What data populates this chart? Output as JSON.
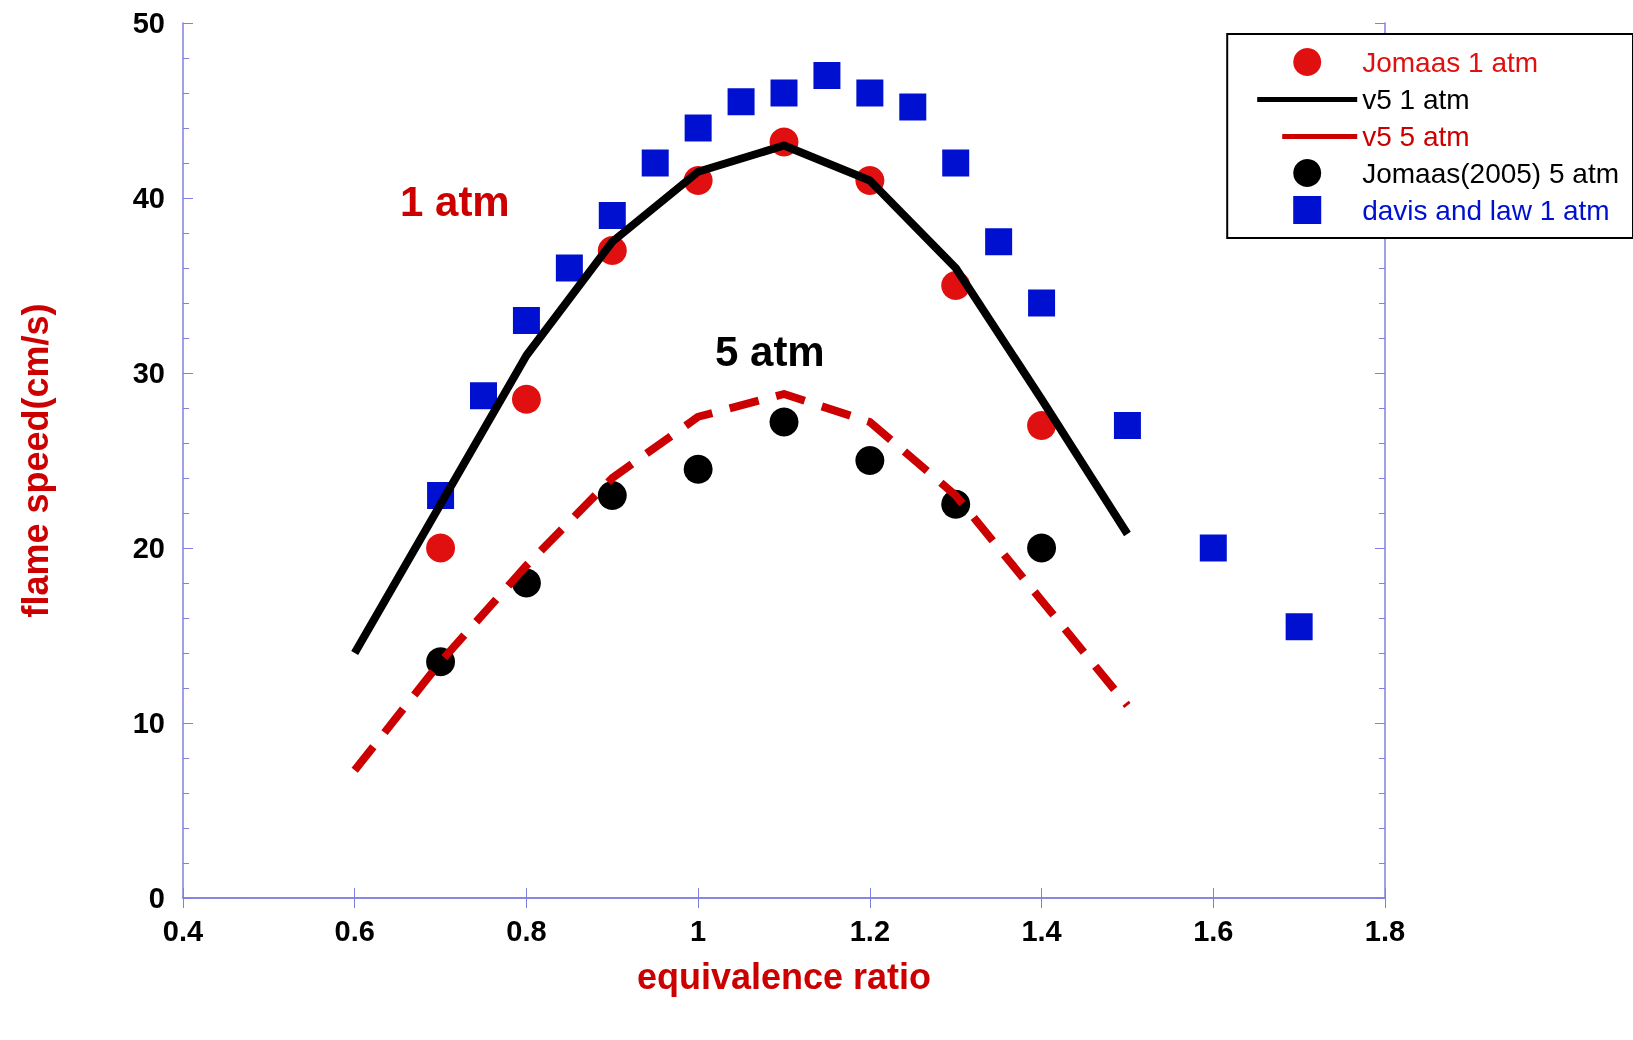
{
  "chart_data": {
    "type": "scatter",
    "xlabel": "equivalence ratio",
    "ylabel": "flame speed(cm/s)",
    "xlim": [
      0.4,
      1.8
    ],
    "xticks": [
      0.4,
      0.6,
      0.8,
      1,
      1.2,
      1.4,
      1.6,
      1.8
    ],
    "ylim": [
      0,
      50
    ],
    "yticks": [
      0,
      10,
      20,
      30,
      40,
      50
    ],
    "grid": false,
    "legend": "top right",
    "annotations": [
      "1 atm",
      "5 atm"
    ],
    "series": [
      {
        "name": "Jomaas 1 atm",
        "type": "scatter",
        "marker": "circle",
        "color": "#e01010",
        "x": [
          0.7,
          0.8,
          0.9,
          1.0,
          1.1,
          1.2,
          1.3,
          1.4
        ],
        "values": [
          20,
          28.5,
          37,
          41,
          43.2,
          41,
          35,
          27
        ]
      },
      {
        "name": "v5 1 atm",
        "type": "line",
        "marker": "none",
        "line_style": "solid",
        "color": "#000000",
        "x": [
          0.6,
          0.7,
          0.8,
          0.9,
          1.0,
          1.1,
          1.2,
          1.3,
          1.4,
          1.5
        ],
        "values": [
          14,
          22.5,
          31,
          37.5,
          41.5,
          43,
          41,
          36,
          28.5,
          20.8
        ]
      },
      {
        "name": "v5 5 atm",
        "type": "line",
        "marker": "none",
        "line_style": "dashed",
        "color": "#cc0000",
        "x": [
          0.6,
          0.7,
          0.8,
          0.9,
          1.0,
          1.1,
          1.2,
          1.3,
          1.4,
          1.5
        ],
        "values": [
          7.3,
          13.5,
          19,
          24,
          27.5,
          28.8,
          27.2,
          23,
          17,
          11
        ]
      },
      {
        "name": "Jomaas(2005) 5 atm",
        "type": "scatter",
        "marker": "circle",
        "color": "#000000",
        "x": [
          0.7,
          0.8,
          0.9,
          1.0,
          1.1,
          1.2,
          1.3,
          1.4
        ],
        "values": [
          13.5,
          18,
          23,
          24.5,
          27.2,
          25,
          22.5,
          20
        ]
      },
      {
        "name": "davis and law 1 atm",
        "type": "scatter",
        "marker": "square",
        "color": "#0010d0",
        "x": [
          0.7,
          0.75,
          0.8,
          0.85,
          0.9,
          0.95,
          1.0,
          1.05,
          1.1,
          1.15,
          1.2,
          1.25,
          1.3,
          1.35,
          1.4,
          1.5,
          1.6,
          1.7
        ],
        "values": [
          23,
          28.7,
          33,
          36,
          39,
          42,
          44,
          45.5,
          46,
          47,
          46,
          45.2,
          42,
          37.5,
          34,
          27,
          20,
          15.5
        ]
      }
    ]
  }
}
